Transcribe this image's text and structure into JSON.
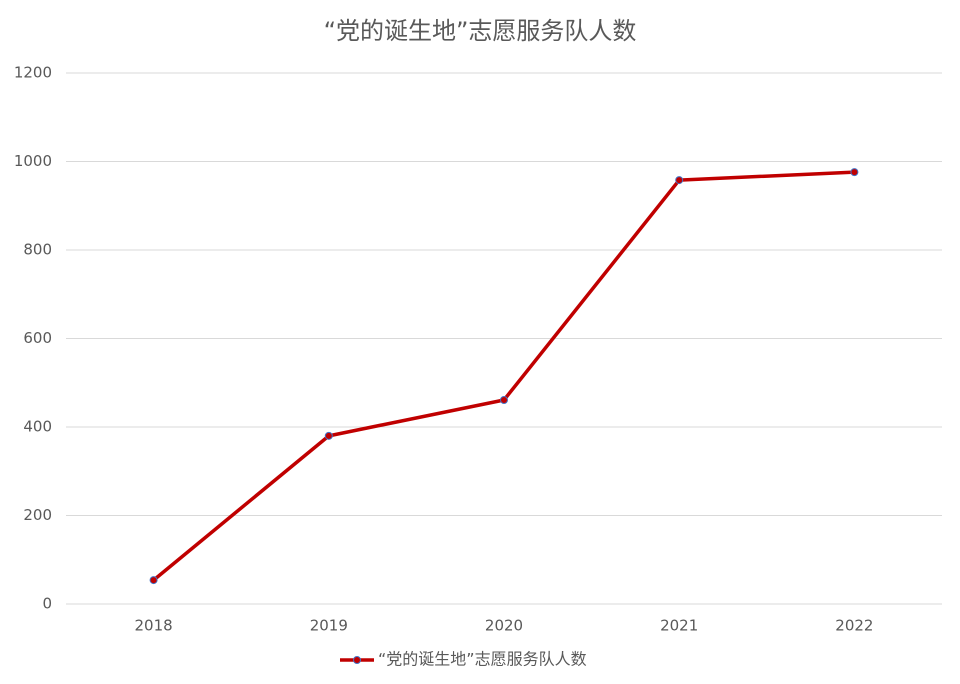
{
  "chart_data": {
    "type": "line",
    "title": "“党的诞生地”志愿服务队人数",
    "categories": [
      "2018",
      "2019",
      "2020",
      "2021",
      "2022"
    ],
    "series": [
      {
        "name": "“党的诞生地”志愿服务队人数",
        "color": "#c00000",
        "marker_edge": "#4472c4",
        "values": [
          54,
          380,
          461,
          958,
          976
        ]
      }
    ],
    "ylim": [
      0,
      1200
    ],
    "yticks": [
      0,
      200,
      400,
      600,
      800,
      1000,
      1200
    ],
    "grid": true,
    "legend": "bottom"
  }
}
